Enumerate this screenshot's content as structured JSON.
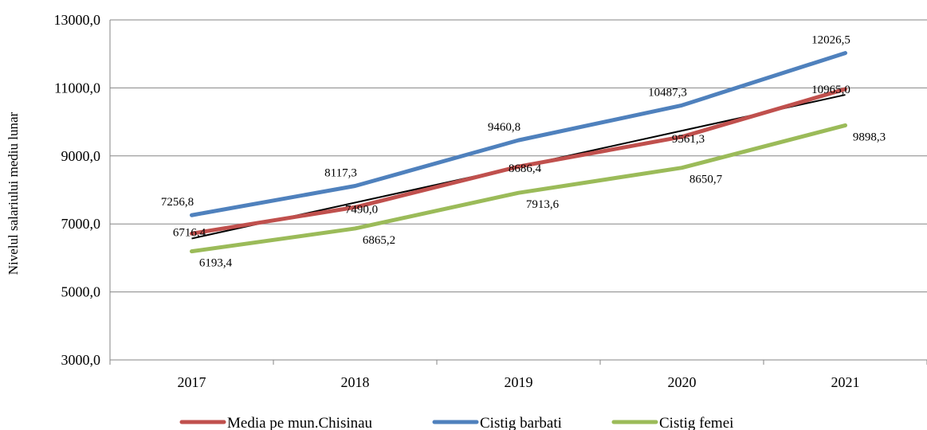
{
  "chart_data": {
    "type": "line",
    "title": "",
    "xlabel": "",
    "ylabel": "Nivelul salariului mediu lunar",
    "categories": [
      "2017",
      "2018",
      "2019",
      "2020",
      "2021"
    ],
    "ylim": [
      3000,
      13000
    ],
    "yticks": [
      3000,
      5000,
      7000,
      9000,
      11000,
      13000
    ],
    "ytick_labels": [
      "3000,0",
      "5000,0",
      "7000,0",
      "9000,0",
      "11000,0",
      "13000,0"
    ],
    "grid": "horizontal",
    "legend_position": "bottom",
    "series": [
      {
        "name": "Media pe mun.Chisinau",
        "color": "#c0504d",
        "values": [
          6716.4,
          7490.0,
          8686.4,
          9561.3,
          10965.0
        ],
        "labels": [
          "6716,4",
          "7490,0",
          "8686,4",
          "9561,3",
          "10965,0"
        ]
      },
      {
        "name": "Cistig barbati",
        "color": "#4f81bd",
        "values": [
          7256.8,
          8117.3,
          9460.8,
          10487.3,
          12026.5
        ],
        "labels": [
          "7256,8",
          "8117,3",
          "9460,8",
          "10487,3",
          "12026,5"
        ]
      },
      {
        "name": "Cistig femei",
        "color": "#9bbb59",
        "values": [
          6193.4,
          6865.2,
          7913.6,
          8650.7,
          9898.3
        ],
        "labels": [
          "6193,4",
          "6865,2",
          "7913,6",
          "8650,7",
          "9898,3"
        ]
      }
    ],
    "trendline": {
      "of_series": "Media pe mun.Chisinau",
      "color": "#000000",
      "type": "linear"
    }
  }
}
